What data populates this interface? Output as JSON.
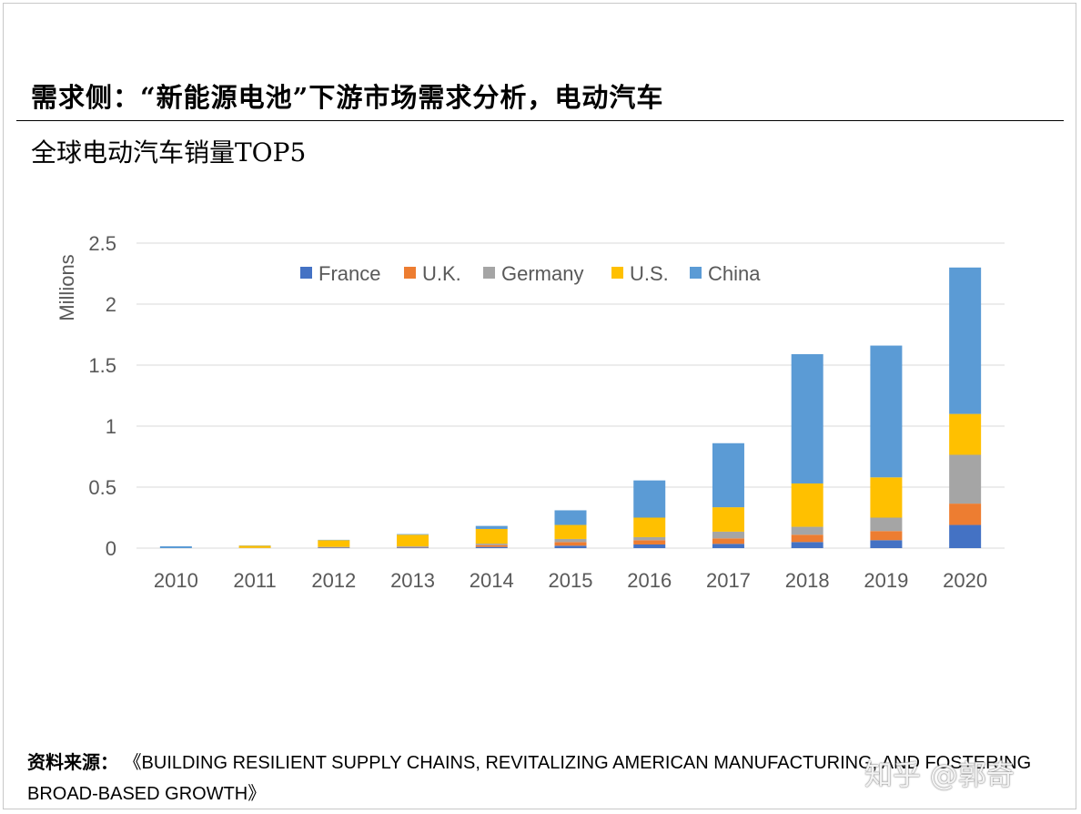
{
  "header": {
    "title": "需求侧：“新能源电池”下游市场需求分析，电动汽车",
    "subtitle": "全球电动汽车销量TOP5"
  },
  "source": {
    "label": "资料来源：",
    "text": "《BUILDING RESILIENT SUPPLY CHAINS, REVITALIZING AMERICAN MANUFACTURING, AND FOSTERING BROAD-BASED GROWTH》"
  },
  "watermark": "知乎 @郭奇",
  "chart_data": {
    "type": "bar",
    "stacked": true,
    "title": "",
    "xlabel": "",
    "ylabel": "Millions",
    "ylim": [
      0,
      2.5
    ],
    "yticks": [
      "0",
      "0.5",
      "1",
      "1.5",
      "2",
      "2.5"
    ],
    "ytick_values": [
      0,
      0.5,
      1,
      1.5,
      2,
      2.5
    ],
    "grid": true,
    "legend_position": "top-center",
    "categories": [
      "2010",
      "2011",
      "2012",
      "2013",
      "2014",
      "2015",
      "2016",
      "2017",
      "2018",
      "2019",
      "2020"
    ],
    "series": [
      {
        "name": "France",
        "color": "#4472C4",
        "values": [
          0.0,
          0.0,
          0.005,
          0.005,
          0.01,
          0.02,
          0.03,
          0.035,
          0.05,
          0.065,
          0.19
        ]
      },
      {
        "name": "U.K.",
        "color": "#ED7D31",
        "values": [
          0.0,
          0.001,
          0.002,
          0.004,
          0.015,
          0.03,
          0.035,
          0.045,
          0.06,
          0.075,
          0.175
        ]
      },
      {
        "name": "Germany",
        "color": "#A5A5A5",
        "values": [
          0.0,
          0.001,
          0.003,
          0.006,
          0.012,
          0.025,
          0.025,
          0.055,
          0.065,
          0.11,
          0.4
        ]
      },
      {
        "name": "U.S.",
        "color": "#FFC000",
        "values": [
          0.0,
          0.018,
          0.055,
          0.095,
          0.12,
          0.115,
          0.16,
          0.2,
          0.355,
          0.33,
          0.335
        ]
      },
      {
        "name": "China",
        "color": "#5B9BD5",
        "values": [
          0.015,
          0.002,
          0.003,
          0.005,
          0.025,
          0.12,
          0.305,
          0.525,
          1.06,
          1.08,
          1.2
        ]
      }
    ]
  }
}
